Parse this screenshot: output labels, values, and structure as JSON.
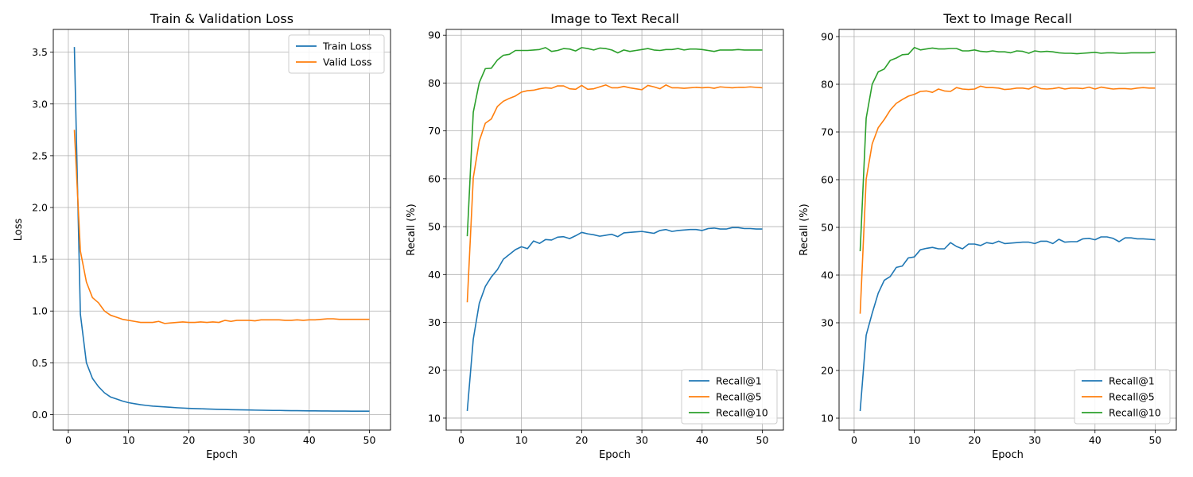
{
  "chart_data": [
    {
      "type": "line",
      "title": "Train & Validation Loss",
      "xlabel": "Epoch",
      "ylabel": "Loss",
      "xlim": [
        -2.5,
        53.5
      ],
      "ylim": [
        -0.15,
        3.72
      ],
      "xticks": [
        0,
        10,
        20,
        30,
        40,
        50
      ],
      "yticks": [
        0.0,
        0.5,
        1.0,
        1.5,
        2.0,
        2.5,
        3.0,
        3.5
      ],
      "ytick_decimals": 1,
      "grid": true,
      "legend": "upper-right",
      "x": [
        1,
        2,
        3,
        4,
        5,
        6,
        7,
        8,
        9,
        10,
        11,
        12,
        13,
        14,
        15,
        16,
        17,
        18,
        19,
        20,
        21,
        22,
        23,
        24,
        25,
        26,
        27,
        28,
        29,
        30,
        31,
        32,
        33,
        34,
        35,
        36,
        37,
        38,
        39,
        40,
        41,
        42,
        43,
        44,
        45,
        46,
        47,
        48,
        49,
        50
      ],
      "series": [
        {
          "name": "Train Loss",
          "color": "#1f77b4",
          "values": [
            3.55,
            0.97,
            0.5,
            0.35,
            0.27,
            0.21,
            0.17,
            0.15,
            0.13,
            0.115,
            0.105,
            0.095,
            0.088,
            0.082,
            0.078,
            0.074,
            0.07,
            0.066,
            0.063,
            0.06,
            0.058,
            0.056,
            0.054,
            0.052,
            0.05,
            0.049,
            0.047,
            0.046,
            0.045,
            0.044,
            0.043,
            0.042,
            0.041,
            0.04,
            0.04,
            0.039,
            0.038,
            0.038,
            0.037,
            0.036,
            0.036,
            0.035,
            0.035,
            0.034,
            0.034,
            0.034,
            0.033,
            0.033,
            0.033,
            0.033
          ]
        },
        {
          "name": "Valid Loss",
          "color": "#ff7f0e",
          "values": [
            2.75,
            1.58,
            1.28,
            1.13,
            1.08,
            1.0,
            0.96,
            0.94,
            0.92,
            0.91,
            0.9,
            0.89,
            0.89,
            0.89,
            0.9,
            0.88,
            0.885,
            0.89,
            0.895,
            0.89,
            0.89,
            0.895,
            0.89,
            0.895,
            0.89,
            0.91,
            0.9,
            0.91,
            0.91,
            0.91,
            0.905,
            0.915,
            0.915,
            0.915,
            0.915,
            0.91,
            0.91,
            0.915,
            0.91,
            0.915,
            0.915,
            0.92,
            0.925,
            0.925,
            0.92,
            0.92,
            0.92,
            0.92,
            0.92,
            0.92
          ]
        }
      ]
    },
    {
      "type": "line",
      "title": "Image to Text Recall",
      "xlabel": "Epoch",
      "ylabel": "Recall (%)",
      "xlim": [
        -2.5,
        53.5
      ],
      "ylim": [
        7.5,
        91.2
      ],
      "xticks": [
        0,
        10,
        20,
        30,
        40,
        50
      ],
      "yticks": [
        10,
        20,
        30,
        40,
        50,
        60,
        70,
        80,
        90
      ],
      "ytick_decimals": 0,
      "grid": true,
      "legend": "lower-right",
      "x": [
        1,
        2,
        3,
        4,
        5,
        6,
        7,
        8,
        9,
        10,
        11,
        12,
        13,
        14,
        15,
        16,
        17,
        18,
        19,
        20,
        21,
        22,
        23,
        24,
        25,
        26,
        27,
        28,
        29,
        30,
        31,
        32,
        33,
        34,
        35,
        36,
        37,
        38,
        39,
        40,
        41,
        42,
        43,
        44,
        45,
        46,
        47,
        48,
        49,
        50
      ],
      "series": [
        {
          "name": "Recall@1",
          "color": "#1f77b4",
          "values": [
            11.5,
            26.5,
            34,
            37.5,
            39.5,
            41,
            43.2,
            44.2,
            45.2,
            45.8,
            45.4,
            47,
            46.5,
            47.3,
            47.2,
            47.8,
            47.9,
            47.5,
            48.1,
            48.8,
            48.5,
            48.3,
            48,
            48.2,
            48.4,
            47.9,
            48.7,
            48.8,
            48.9,
            49.0,
            48.8,
            48.6,
            49.2,
            49.4,
            49.0,
            49.2,
            49.3,
            49.4,
            49.4,
            49.2,
            49.6,
            49.7,
            49.5,
            49.5,
            49.8,
            49.8,
            49.6,
            49.6,
            49.5,
            49.5
          ]
        },
        {
          "name": "Recall@5",
          "color": "#ff7f0e",
          "values": [
            34.2,
            60.2,
            67.9,
            71.6,
            72.5,
            75.1,
            76.2,
            76.8,
            77.3,
            78.1,
            78.4,
            78.5,
            78.8,
            79,
            78.9,
            79.4,
            79.4,
            78.8,
            78.7,
            79.5,
            78.7,
            78.8,
            79.2,
            79.6,
            79,
            79,
            79.3,
            79,
            78.8,
            78.6,
            79.5,
            79.2,
            78.8,
            79.6,
            79,
            79,
            78.9,
            79,
            79.1,
            79,
            79.1,
            78.9,
            79.2,
            79.1,
            79,
            79.1,
            79.1,
            79.2,
            79.1,
            79.0
          ]
        },
        {
          "name": "Recall@10",
          "color": "#2ca02c",
          "values": [
            48,
            73.9,
            80.1,
            83,
            83.1,
            84.8,
            85.8,
            86,
            86.8,
            86.8,
            86.8,
            86.9,
            87,
            87.4,
            86.6,
            86.8,
            87.2,
            87.1,
            86.7,
            87.4,
            87.2,
            86.9,
            87.3,
            87.2,
            86.9,
            86.3,
            86.9,
            86.6,
            86.8,
            87,
            87.2,
            86.9,
            86.8,
            87,
            87,
            87.2,
            86.9,
            87.1,
            87.1,
            87,
            86.8,
            86.6,
            86.9,
            86.9,
            86.9,
            87,
            86.9,
            86.9,
            86.9,
            86.9
          ]
        }
      ]
    },
    {
      "type": "line",
      "title": "Text to Image Recall",
      "xlabel": "Epoch",
      "ylabel": "Recall (%)",
      "xlim": [
        -2.5,
        53.5
      ],
      "ylim": [
        7.5,
        91.5
      ],
      "xticks": [
        0,
        10,
        20,
        30,
        40,
        50
      ],
      "yticks": [
        10,
        20,
        30,
        40,
        50,
        60,
        70,
        80,
        90
      ],
      "ytick_decimals": 0,
      "grid": true,
      "legend": "lower-right",
      "x": [
        1,
        2,
        3,
        4,
        5,
        6,
        7,
        8,
        9,
        10,
        11,
        12,
        13,
        14,
        15,
        16,
        17,
        18,
        19,
        20,
        21,
        22,
        23,
        24,
        25,
        26,
        27,
        28,
        29,
        30,
        31,
        32,
        33,
        34,
        35,
        36,
        37,
        38,
        39,
        40,
        41,
        42,
        43,
        44,
        45,
        46,
        47,
        48,
        49,
        50
      ],
      "series": [
        {
          "name": "Recall@1",
          "color": "#1f77b4",
          "values": [
            11.5,
            27.4,
            32,
            36.2,
            38.9,
            39.7,
            41.6,
            41.9,
            43.6,
            43.8,
            45.3,
            45.6,
            45.8,
            45.5,
            45.5,
            46.8,
            46,
            45.5,
            46.5,
            46.5,
            46.2,
            46.8,
            46.6,
            47.1,
            46.6,
            46.7,
            46.8,
            46.9,
            46.9,
            46.6,
            47.1,
            47.1,
            46.6,
            47.5,
            46.9,
            47,
            47,
            47.6,
            47.7,
            47.4,
            48,
            48,
            47.7,
            47,
            47.8,
            47.8,
            47.6,
            47.6,
            47.5,
            47.4
          ]
        },
        {
          "name": "Recall@5",
          "color": "#ff7f0e",
          "values": [
            31.9,
            60.1,
            67.5,
            70.9,
            72.6,
            74.6,
            76,
            76.8,
            77.5,
            77.9,
            78.5,
            78.6,
            78.3,
            79,
            78.6,
            78.5,
            79.3,
            79,
            78.9,
            79,
            79.6,
            79.3,
            79.3,
            79.2,
            78.9,
            79,
            79.2,
            79.2,
            79,
            79.6,
            79.1,
            79,
            79.1,
            79.3,
            79,
            79.2,
            79.2,
            79.1,
            79.4,
            79,
            79.4,
            79.2,
            79,
            79.1,
            79.1,
            79,
            79.2,
            79.3,
            79.2,
            79.2
          ]
        },
        {
          "name": "Recall@10",
          "color": "#2ca02c",
          "values": [
            45,
            72.9,
            80,
            82.6,
            83.2,
            85,
            85.5,
            86.2,
            86.3,
            87.7,
            87.2,
            87.4,
            87.6,
            87.4,
            87.4,
            87.5,
            87.5,
            87,
            87,
            87.2,
            86.9,
            86.8,
            87,
            86.8,
            86.8,
            86.6,
            87,
            86.9,
            86.5,
            87,
            86.8,
            86.9,
            86.8,
            86.6,
            86.5,
            86.5,
            86.4,
            86.5,
            86.6,
            86.7,
            86.5,
            86.6,
            86.6,
            86.5,
            86.5,
            86.6,
            86.6,
            86.6,
            86.6,
            86.7
          ]
        }
      ]
    }
  ]
}
